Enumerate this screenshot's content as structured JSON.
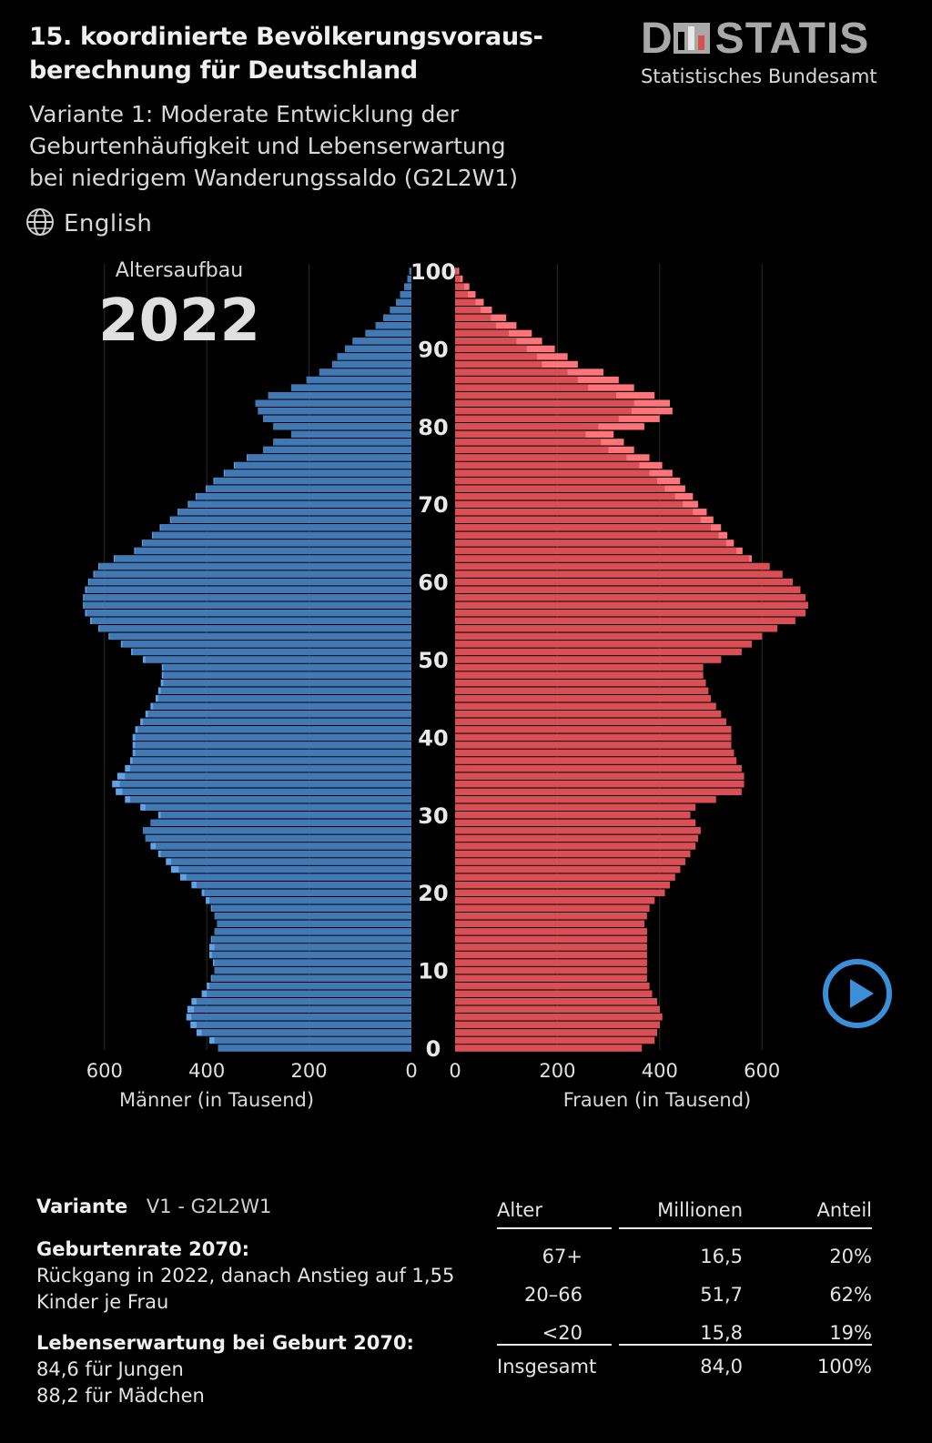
{
  "header": {
    "title": "15. koordinierte Bevölkerungsvoraus­berechnung für Deutschland",
    "title_line1": "15. koordinierte Bevölkerungsvoraus-",
    "title_line2": "berechnung für Deutschland",
    "subtitle_line1": "Variante 1: Moderate Entwicklung der",
    "subtitle_line2": "Geburtenhäufigkeit und Lebenserwartung",
    "subtitle_line3": "bei niedrigem Wanderungssaldo (G2L2W1)",
    "language_link": "English"
  },
  "logo": {
    "wordmark": "DESTATIS",
    "letter_d": "D",
    "letters_rest": "STATIS",
    "subtitle": "Statistisches Bundesamt"
  },
  "chart_data": {
    "type": "population-pyramid",
    "caption": "Altersaufbau",
    "year": "2022",
    "age_ticks": [
      "0",
      "10",
      "20",
      "30",
      "40",
      "50",
      "60",
      "70",
      "80",
      "90",
      "100"
    ],
    "x_ticks_left": [
      "600",
      "400",
      "200",
      "0"
    ],
    "x_ticks_right": [
      "0",
      "200",
      "400",
      "600"
    ],
    "xlabel_men": "Männer (in Tausend)",
    "xlabel_women": "Frauen (in Tausend)",
    "xlim": [
      0,
      650
    ],
    "ages": [
      0,
      1,
      2,
      3,
      4,
      5,
      6,
      7,
      8,
      9,
      10,
      11,
      12,
      13,
      14,
      15,
      16,
      17,
      18,
      19,
      20,
      21,
      22,
      23,
      24,
      25,
      26,
      27,
      28,
      29,
      30,
      31,
      32,
      33,
      34,
      35,
      36,
      37,
      38,
      39,
      40,
      41,
      42,
      43,
      44,
      45,
      46,
      47,
      48,
      49,
      50,
      51,
      52,
      53,
      54,
      55,
      56,
      57,
      58,
      59,
      60,
      61,
      62,
      63,
      64,
      65,
      66,
      67,
      68,
      69,
      70,
      71,
      72,
      73,
      74,
      75,
      76,
      77,
      78,
      79,
      80,
      81,
      82,
      83,
      84,
      85,
      86,
      87,
      88,
      89,
      90,
      91,
      92,
      93,
      94,
      95,
      96,
      97,
      98,
      99,
      100
    ],
    "series": [
      {
        "name": "Männer",
        "color": "#4278b4",
        "values": [
          378,
          385,
          410,
          420,
          430,
          425,
          420,
          400,
          395,
          390,
          385,
          385,
          390,
          385,
          390,
          385,
          380,
          385,
          390,
          395,
          405,
          420,
          440,
          455,
          470,
          490,
          500,
          520,
          525,
          510,
          490,
          520,
          550,
          565,
          570,
          560,
          550,
          545,
          540,
          540,
          540,
          535,
          525,
          515,
          505,
          495,
          490,
          485,
          485,
          485,
          520,
          545,
          565,
          590,
          610,
          625,
          635,
          640,
          640,
          635,
          630,
          620,
          610,
          580,
          540,
          525,
          505,
          490,
          470,
          455,
          435,
          420,
          400,
          385,
          365,
          345,
          320,
          290,
          270,
          235,
          270,
          290,
          300,
          305,
          280,
          235,
          205,
          180,
          155,
          145,
          130,
          115,
          90,
          70,
          55,
          42,
          30,
          22,
          14,
          8,
          4
        ]
      },
      {
        "name": "Frauen",
        "color": "#d94f55",
        "values": [
          365,
          390,
          395,
          400,
          405,
          400,
          395,
          385,
          380,
          375,
          375,
          375,
          375,
          375,
          375,
          375,
          370,
          375,
          380,
          390,
          410,
          420,
          430,
          440,
          450,
          460,
          470,
          475,
          480,
          470,
          460,
          470,
          510,
          560,
          565,
          565,
          560,
          550,
          545,
          540,
          540,
          540,
          530,
          520,
          510,
          500,
          495,
          490,
          485,
          485,
          520,
          560,
          580,
          600,
          630,
          665,
          685,
          690,
          685,
          675,
          660,
          640,
          615,
          575,
          550,
          530,
          515,
          500,
          480,
          465,
          445,
          430,
          410,
          395,
          380,
          360,
          335,
          300,
          285,
          255,
          280,
          320,
          345,
          350,
          315,
          260,
          240,
          220,
          170,
          160,
          140,
          120,
          105,
          80,
          70,
          50,
          40,
          25,
          18,
          10,
          5
        ]
      },
      {
        "name": "",
        "color": "#5fa4e8",
        "values": [
          378,
          395,
          420,
          432,
          440,
          438,
          430,
          410,
          400,
          392,
          385,
          388,
          395,
          395,
          392,
          385,
          380,
          385,
          392,
          402,
          410,
          430,
          452,
          470,
          480,
          495,
          510,
          520,
          525,
          510,
          495,
          530,
          560,
          578,
          585,
          575,
          560,
          550,
          545,
          545,
          545,
          540,
          530,
          520,
          510,
          500,
          495,
          490,
          488,
          488,
          525,
          548,
          568,
          592,
          612,
          628,
          638,
          642,
          642,
          638,
          632,
          622,
          612,
          582,
          542,
          527,
          507,
          492,
          472,
          457,
          437,
          422,
          402,
          387,
          367,
          347,
          322,
          290,
          270,
          235,
          270,
          290,
          300,
          305,
          280,
          235,
          205,
          180,
          155,
          145,
          130,
          115,
          90,
          70,
          55,
          42,
          30,
          22,
          14,
          8,
          4
        ]
      },
      {
        "name": "",
        "color": "#ff7478",
        "values": [
          365,
          390,
          395,
          400,
          405,
          400,
          395,
          385,
          380,
          375,
          375,
          375,
          375,
          375,
          375,
          375,
          370,
          375,
          380,
          390,
          410,
          420,
          430,
          440,
          450,
          460,
          470,
          475,
          480,
          470,
          460,
          470,
          510,
          560,
          565,
          565,
          560,
          550,
          545,
          540,
          540,
          540,
          530,
          520,
          510,
          500,
          495,
          490,
          485,
          485,
          520,
          560,
          580,
          600,
          630,
          665,
          685,
          690,
          685,
          675,
          660,
          640,
          615,
          580,
          562,
          545,
          532,
          520,
          505,
          492,
          475,
          465,
          450,
          440,
          425,
          405,
          380,
          350,
          330,
          310,
          370,
          400,
          425,
          420,
          390,
          350,
          320,
          290,
          240,
          220,
          195,
          170,
          150,
          120,
          100,
          72,
          56,
          40,
          28,
          15,
          8
        ]
      }
    ]
  },
  "info": {
    "variant_label": "Variante",
    "variant_value": "V1 - G2L2W1",
    "birth_title": "Geburtenrate 2070:",
    "birth_text_line1": "Rückgang in 2022, danach Anstieg auf 1,55",
    "birth_text_line2": "Kinder je Frau",
    "life_title": "Lebenserwartung bei Geburt 2070:",
    "life_boys": "84,6 für Jungen",
    "life_girls": "88,2 für Mädchen"
  },
  "table": {
    "headers": [
      "Alter",
      "Millionen",
      "Anteil"
    ],
    "rows": [
      [
        "67+",
        "16,5",
        "20%"
      ],
      [
        "20–66",
        "51,7",
        "62%"
      ],
      [
        "<20",
        "15,8",
        "19%"
      ]
    ],
    "total": [
      "Insgesamt",
      "84,0",
      "100%"
    ]
  },
  "colors": {
    "men": "#4278b4",
    "men_highlight": "#5fa4e8",
    "women": "#d94f55",
    "women_highlight": "#ff7478",
    "accent_play": "#3a8fd8",
    "background": "#000000"
  }
}
